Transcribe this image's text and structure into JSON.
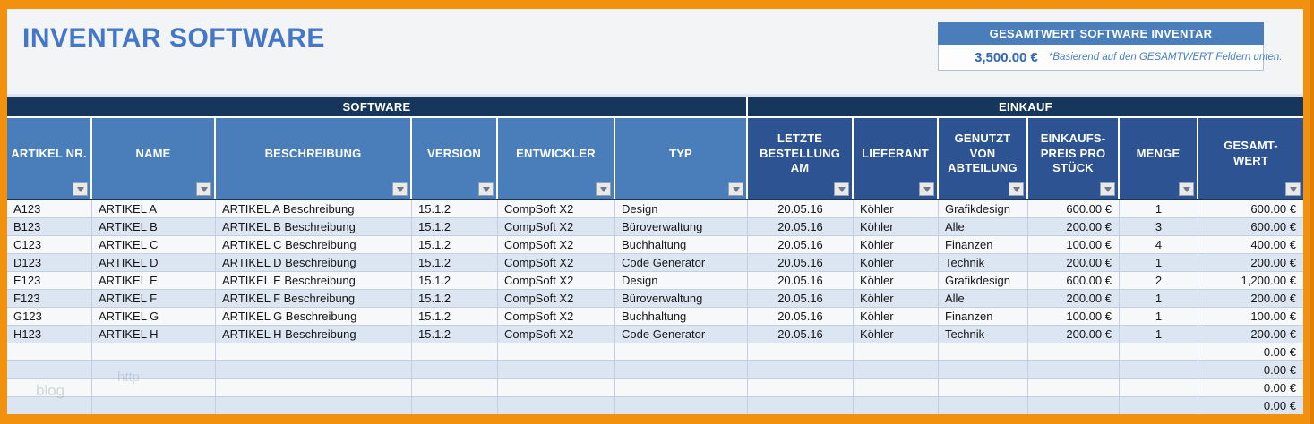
{
  "page": {
    "title": "INVENTAR SOFTWARE"
  },
  "summary_box": {
    "header": "GESAMTWERT SOFTWARE INVENTAR",
    "value": "3,500.00 €",
    "note": "*Basierend auf den GESAMTWERT Feldern unten."
  },
  "table": {
    "groups": [
      {
        "id": "software",
        "label": "SOFTWARE",
        "span": 6
      },
      {
        "id": "einkauf",
        "label": "EINKAUF",
        "span": 6
      }
    ],
    "columns": [
      {
        "key": "artikel_nr",
        "label": "ARTIKEL NR.",
        "group": "software",
        "align": "left"
      },
      {
        "key": "name",
        "label": "NAME",
        "group": "software",
        "align": "left"
      },
      {
        "key": "beschreibung",
        "label": "BESCHREIBUNG",
        "group": "software",
        "align": "left"
      },
      {
        "key": "version",
        "label": "VERSION",
        "group": "software",
        "align": "left"
      },
      {
        "key": "entwickler",
        "label": "ENTWICKLER",
        "group": "software",
        "align": "left"
      },
      {
        "key": "typ",
        "label": "TYP",
        "group": "software",
        "align": "left"
      },
      {
        "key": "letzte_bestellung_am",
        "label": "LETZTE BESTELLUNG AM",
        "group": "einkauf",
        "align": "center"
      },
      {
        "key": "lieferant",
        "label": "LIEFERANT",
        "group": "einkauf",
        "align": "left"
      },
      {
        "key": "genutzt_von_abteilung",
        "label": "GENUTZT VON ABTEILUNG",
        "group": "einkauf",
        "align": "left"
      },
      {
        "key": "einkaufspreis_pro_stueck",
        "label": "EINKAUFS-PREIS PRO STÜCK",
        "group": "einkauf",
        "align": "right"
      },
      {
        "key": "menge",
        "label": "MENGE",
        "group": "einkauf",
        "align": "center"
      },
      {
        "key": "gesamtwert",
        "label": "GESAMT-WERT",
        "group": "einkauf",
        "align": "right"
      }
    ],
    "rows": [
      [
        "A123",
        "ARTIKEL A",
        "ARTIKEL A Beschreibung",
        "15.1.2",
        "CompSoft X2",
        "Design",
        "20.05.16",
        "Köhler",
        "Grafikdesign",
        "600.00 €",
        "1",
        "600.00 €"
      ],
      [
        "B123",
        "ARTIKEL B",
        "ARTIKEL B Beschreibung",
        "15.1.2",
        "CompSoft X2",
        "Büroverwaltung",
        "20.05.16",
        "Köhler",
        "Alle",
        "200.00 €",
        "3",
        "600.00 €"
      ],
      [
        "C123",
        "ARTIKEL C",
        "ARTIKEL C Beschreibung",
        "15.1.2",
        "CompSoft X2",
        "Buchhaltung",
        "20.05.16",
        "Köhler",
        "Finanzen",
        "100.00 €",
        "4",
        "400.00 €"
      ],
      [
        "D123",
        "ARTIKEL D",
        "ARTIKEL D Beschreibung",
        "15.1.2",
        "CompSoft X2",
        "Code Generator",
        "20.05.16",
        "Köhler",
        "Technik",
        "200.00 €",
        "1",
        "200.00 €"
      ],
      [
        "E123",
        "ARTIKEL E",
        "ARTIKEL E Beschreibung",
        "15.1.2",
        "CompSoft X2",
        "Design",
        "20.05.16",
        "Köhler",
        "Grafikdesign",
        "600.00 €",
        "2",
        "1,200.00 €"
      ],
      [
        "F123",
        "ARTIKEL F",
        "ARTIKEL F Beschreibung",
        "15.1.2",
        "CompSoft X2",
        "Büroverwaltung",
        "20.05.16",
        "Köhler",
        "Alle",
        "200.00 €",
        "1",
        "200.00 €"
      ],
      [
        "G123",
        "ARTIKEL G",
        "ARTIKEL G Beschreibung",
        "15.1.2",
        "CompSoft X2",
        "Buchhaltung",
        "20.05.16",
        "Köhler",
        "Finanzen",
        "100.00 €",
        "1",
        "100.00 €"
      ],
      [
        "H123",
        "ARTIKEL H",
        "ARTIKEL H Beschreibung",
        "15.1.2",
        "CompSoft X2",
        "Code Generator",
        "20.05.16",
        "Köhler",
        "Technik",
        "200.00 €",
        "1",
        "200.00 €"
      ]
    ],
    "empty_rows": {
      "count": 4,
      "gesamtwert": "0.00 €"
    },
    "filter_icon": "filter-dropdown-triangle"
  },
  "watermark": {
    "text_top": "http",
    "text_bottom": "blog"
  },
  "colors": {
    "border_orange": "#f2910d",
    "group_header_navy": "#17365c",
    "software_header_blue": "#4a7ebb",
    "einkauf_header_blue": "#2d5392",
    "summary_header_blue": "#4a7ebb",
    "row_stripe_blue": "#dce6f2",
    "row_stripe_white": "#f7f8fa",
    "title_blue": "#4477c8",
    "value_blue": "#3168b1"
  }
}
